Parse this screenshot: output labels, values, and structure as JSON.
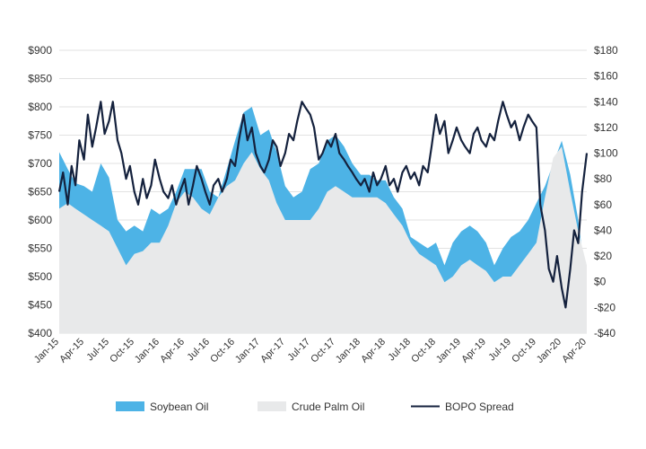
{
  "colors": {
    "soybean": "#4db3e6",
    "palm": "#e8e9ea",
    "spread": "#14213d",
    "grid": "#e2e2e2",
    "text": "#333333"
  },
  "chart_data": {
    "type": "area",
    "title": "",
    "xlabel": "",
    "ylabel": "",
    "y2label": "",
    "grid": true,
    "legend_position": "bottom-center",
    "x_tick_labels": [
      "Jan-15",
      "Apr-15",
      "Jul-15",
      "Oct-15",
      "Jan-16",
      "Apr-16",
      "Jul-16",
      "Oct-16",
      "Jan-17",
      "Apr-17",
      "Jul-17",
      "Oct-17",
      "Jan-18",
      "Apr-18",
      "Jul-18",
      "Oct-18",
      "Jan-19",
      "Apr-19",
      "Jul-19",
      "Oct-19",
      "Jan-20",
      "Apr-20"
    ],
    "xlim": [
      "2015-01-01",
      "2020-04-01"
    ],
    "ylim": [
      400,
      900
    ],
    "y_ticks": [
      400,
      450,
      500,
      550,
      600,
      650,
      700,
      750,
      800,
      850,
      900
    ],
    "y_tick_labels": [
      "$400",
      "$450",
      "$500",
      "$550",
      "$600",
      "$650",
      "$700",
      "$750",
      "$800",
      "$850",
      "$900"
    ],
    "y2lim": [
      -40,
      180
    ],
    "y2_ticks": [
      -40,
      -20,
      0,
      20,
      40,
      60,
      80,
      100,
      120,
      140,
      160,
      180
    ],
    "y2_tick_labels": [
      "-$40",
      "-$20",
      "$0",
      "$20",
      "$40",
      "$60",
      "$80",
      "$100",
      "$120",
      "$140",
      "$160",
      "$180"
    ],
    "series": [
      {
        "name": "Soybean Oil",
        "kind": "area",
        "axis": "left",
        "points": [
          [
            "2015-01-01",
            720
          ],
          [
            "2015-02-01",
            690
          ],
          [
            "2015-03-01",
            665
          ],
          [
            "2015-04-01",
            660
          ],
          [
            "2015-05-01",
            650
          ],
          [
            "2015-06-01",
            700
          ],
          [
            "2015-07-01",
            675
          ],
          [
            "2015-08-01",
            600
          ],
          [
            "2015-09-01",
            580
          ],
          [
            "2015-10-01",
            590
          ],
          [
            "2015-11-01",
            580
          ],
          [
            "2015-12-01",
            620
          ],
          [
            "2016-01-01",
            610
          ],
          [
            "2016-02-01",
            620
          ],
          [
            "2016-03-01",
            650
          ],
          [
            "2016-04-01",
            690
          ],
          [
            "2016-05-01",
            690
          ],
          [
            "2016-06-01",
            690
          ],
          [
            "2016-07-01",
            650
          ],
          [
            "2016-08-01",
            640
          ],
          [
            "2016-09-01",
            690
          ],
          [
            "2016-10-01",
            740
          ],
          [
            "2016-11-01",
            790
          ],
          [
            "2016-12-01",
            800
          ],
          [
            "2017-01-01",
            750
          ],
          [
            "2017-02-01",
            760
          ],
          [
            "2017-03-01",
            720
          ],
          [
            "2017-04-01",
            660
          ],
          [
            "2017-05-01",
            640
          ],
          [
            "2017-06-01",
            650
          ],
          [
            "2017-07-01",
            690
          ],
          [
            "2017-08-01",
            700
          ],
          [
            "2017-09-01",
            740
          ],
          [
            "2017-10-01",
            750
          ],
          [
            "2017-11-01",
            730
          ],
          [
            "2017-12-01",
            700
          ],
          [
            "2018-01-01",
            680
          ],
          [
            "2018-02-01",
            680
          ],
          [
            "2018-03-01",
            670
          ],
          [
            "2018-04-01",
            670
          ],
          [
            "2018-05-01",
            640
          ],
          [
            "2018-06-01",
            620
          ],
          [
            "2018-07-01",
            570
          ],
          [
            "2018-08-01",
            560
          ],
          [
            "2018-09-01",
            550
          ],
          [
            "2018-10-01",
            560
          ],
          [
            "2018-11-01",
            520
          ],
          [
            "2018-12-01",
            560
          ],
          [
            "2019-01-01",
            580
          ],
          [
            "2019-02-01",
            590
          ],
          [
            "2019-03-01",
            580
          ],
          [
            "2019-04-01",
            560
          ],
          [
            "2019-05-01",
            520
          ],
          [
            "2019-06-01",
            550
          ],
          [
            "2019-07-01",
            570
          ],
          [
            "2019-08-01",
            580
          ],
          [
            "2019-09-01",
            600
          ],
          [
            "2019-10-01",
            630
          ],
          [
            "2019-11-01",
            660
          ],
          [
            "2019-12-01",
            700
          ],
          [
            "2020-01-01",
            740
          ],
          [
            "2020-02-01",
            680
          ],
          [
            "2020-03-01",
            600
          ],
          [
            "2020-04-01",
            480
          ]
        ]
      },
      {
        "name": "Crude Palm Oil",
        "kind": "area",
        "axis": "left",
        "points": [
          [
            "2015-01-01",
            620
          ],
          [
            "2015-02-01",
            630
          ],
          [
            "2015-03-01",
            620
          ],
          [
            "2015-04-01",
            610
          ],
          [
            "2015-05-01",
            600
          ],
          [
            "2015-06-01",
            590
          ],
          [
            "2015-07-01",
            580
          ],
          [
            "2015-08-01",
            550
          ],
          [
            "2015-09-01",
            520
          ],
          [
            "2015-10-01",
            540
          ],
          [
            "2015-11-01",
            545
          ],
          [
            "2015-12-01",
            560
          ],
          [
            "2016-01-01",
            560
          ],
          [
            "2016-02-01",
            590
          ],
          [
            "2016-03-01",
            630
          ],
          [
            "2016-04-01",
            650
          ],
          [
            "2016-05-01",
            640
          ],
          [
            "2016-06-01",
            620
          ],
          [
            "2016-07-01",
            610
          ],
          [
            "2016-08-01",
            640
          ],
          [
            "2016-09-01",
            660
          ],
          [
            "2016-10-01",
            670
          ],
          [
            "2016-11-01",
            700
          ],
          [
            "2016-12-01",
            720
          ],
          [
            "2017-01-01",
            690
          ],
          [
            "2017-02-01",
            670
          ],
          [
            "2017-03-01",
            630
          ],
          [
            "2017-04-01",
            600
          ],
          [
            "2017-05-01",
            600
          ],
          [
            "2017-06-01",
            600
          ],
          [
            "2017-07-01",
            600
          ],
          [
            "2017-08-01",
            620
          ],
          [
            "2017-09-01",
            650
          ],
          [
            "2017-10-01",
            660
          ],
          [
            "2017-11-01",
            650
          ],
          [
            "2017-12-01",
            640
          ],
          [
            "2018-01-01",
            640
          ],
          [
            "2018-02-01",
            640
          ],
          [
            "2018-03-01",
            640
          ],
          [
            "2018-04-01",
            630
          ],
          [
            "2018-05-01",
            610
          ],
          [
            "2018-06-01",
            590
          ],
          [
            "2018-07-01",
            560
          ],
          [
            "2018-08-01",
            540
          ],
          [
            "2018-09-01",
            530
          ],
          [
            "2018-10-01",
            520
          ],
          [
            "2018-11-01",
            490
          ],
          [
            "2018-12-01",
            500
          ],
          [
            "2019-01-01",
            520
          ],
          [
            "2019-02-01",
            530
          ],
          [
            "2019-03-01",
            520
          ],
          [
            "2019-04-01",
            510
          ],
          [
            "2019-05-01",
            490
          ],
          [
            "2019-06-01",
            500
          ],
          [
            "2019-07-01",
            500
          ],
          [
            "2019-08-01",
            520
          ],
          [
            "2019-09-01",
            540
          ],
          [
            "2019-10-01",
            560
          ],
          [
            "2019-11-01",
            640
          ],
          [
            "2019-12-01",
            710
          ],
          [
            "2020-01-01",
            730
          ],
          [
            "2020-02-01",
            650
          ],
          [
            "2020-03-01",
            580
          ],
          [
            "2020-04-01",
            520
          ]
        ]
      },
      {
        "name": "BOPO Spread",
        "kind": "line",
        "axis": "right",
        "points": [
          [
            "2015-01-01",
            70
          ],
          [
            "2015-01-15",
            85
          ],
          [
            "2015-02-01",
            60
          ],
          [
            "2015-02-15",
            90
          ],
          [
            "2015-03-01",
            75
          ],
          [
            "2015-03-15",
            110
          ],
          [
            "2015-04-01",
            95
          ],
          [
            "2015-04-15",
            130
          ],
          [
            "2015-05-01",
            105
          ],
          [
            "2015-05-15",
            120
          ],
          [
            "2015-06-01",
            140
          ],
          [
            "2015-06-15",
            115
          ],
          [
            "2015-07-01",
            125
          ],
          [
            "2015-07-15",
            140
          ],
          [
            "2015-08-01",
            110
          ],
          [
            "2015-08-15",
            100
          ],
          [
            "2015-09-01",
            80
          ],
          [
            "2015-09-15",
            90
          ],
          [
            "2015-10-01",
            70
          ],
          [
            "2015-10-15",
            60
          ],
          [
            "2015-11-01",
            80
          ],
          [
            "2015-11-15",
            65
          ],
          [
            "2015-12-01",
            75
          ],
          [
            "2015-12-15",
            95
          ],
          [
            "2016-01-01",
            80
          ],
          [
            "2016-01-15",
            70
          ],
          [
            "2016-02-01",
            65
          ],
          [
            "2016-02-15",
            75
          ],
          [
            "2016-03-01",
            60
          ],
          [
            "2016-03-15",
            70
          ],
          [
            "2016-04-01",
            80
          ],
          [
            "2016-04-15",
            60
          ],
          [
            "2016-05-01",
            75
          ],
          [
            "2016-05-15",
            90
          ],
          [
            "2016-06-01",
            80
          ],
          [
            "2016-06-15",
            70
          ],
          [
            "2016-07-01",
            60
          ],
          [
            "2016-07-15",
            75
          ],
          [
            "2016-08-01",
            80
          ],
          [
            "2016-08-15",
            70
          ],
          [
            "2016-09-01",
            80
          ],
          [
            "2016-09-15",
            95
          ],
          [
            "2016-10-01",
            90
          ],
          [
            "2016-10-15",
            110
          ],
          [
            "2016-11-01",
            130
          ],
          [
            "2016-11-15",
            110
          ],
          [
            "2016-12-01",
            120
          ],
          [
            "2016-12-15",
            100
          ],
          [
            "2017-01-01",
            90
          ],
          [
            "2017-01-15",
            85
          ],
          [
            "2017-02-01",
            95
          ],
          [
            "2017-02-15",
            110
          ],
          [
            "2017-03-01",
            105
          ],
          [
            "2017-03-15",
            90
          ],
          [
            "2017-04-01",
            100
          ],
          [
            "2017-04-15",
            115
          ],
          [
            "2017-05-01",
            110
          ],
          [
            "2017-05-15",
            125
          ],
          [
            "2017-06-01",
            140
          ],
          [
            "2017-06-15",
            135
          ],
          [
            "2017-07-01",
            130
          ],
          [
            "2017-07-15",
            120
          ],
          [
            "2017-08-01",
            95
          ],
          [
            "2017-08-15",
            100
          ],
          [
            "2017-09-01",
            110
          ],
          [
            "2017-09-15",
            105
          ],
          [
            "2017-10-01",
            115
          ],
          [
            "2017-10-15",
            100
          ],
          [
            "2017-11-01",
            95
          ],
          [
            "2017-11-15",
            90
          ],
          [
            "2017-12-01",
            85
          ],
          [
            "2017-12-15",
            80
          ],
          [
            "2018-01-01",
            75
          ],
          [
            "2018-01-15",
            80
          ],
          [
            "2018-02-01",
            70
          ],
          [
            "2018-02-15",
            85
          ],
          [
            "2018-03-01",
            75
          ],
          [
            "2018-03-15",
            80
          ],
          [
            "2018-04-01",
            90
          ],
          [
            "2018-04-15",
            75
          ],
          [
            "2018-05-01",
            80
          ],
          [
            "2018-05-15",
            70
          ],
          [
            "2018-06-01",
            85
          ],
          [
            "2018-06-15",
            90
          ],
          [
            "2018-07-01",
            80
          ],
          [
            "2018-07-15",
            85
          ],
          [
            "2018-08-01",
            75
          ],
          [
            "2018-08-15",
            90
          ],
          [
            "2018-09-01",
            85
          ],
          [
            "2018-09-15",
            105
          ],
          [
            "2018-10-01",
            130
          ],
          [
            "2018-10-15",
            115
          ],
          [
            "2018-11-01",
            125
          ],
          [
            "2018-11-15",
            100
          ],
          [
            "2018-12-01",
            110
          ],
          [
            "2018-12-15",
            120
          ],
          [
            "2019-01-01",
            110
          ],
          [
            "2019-01-15",
            105
          ],
          [
            "2019-02-01",
            100
          ],
          [
            "2019-02-15",
            115
          ],
          [
            "2019-03-01",
            120
          ],
          [
            "2019-03-15",
            110
          ],
          [
            "2019-04-01",
            105
          ],
          [
            "2019-04-15",
            115
          ],
          [
            "2019-05-01",
            110
          ],
          [
            "2019-05-15",
            125
          ],
          [
            "2019-06-01",
            140
          ],
          [
            "2019-06-15",
            130
          ],
          [
            "2019-07-01",
            120
          ],
          [
            "2019-07-15",
            125
          ],
          [
            "2019-08-01",
            110
          ],
          [
            "2019-08-15",
            120
          ],
          [
            "2019-09-01",
            130
          ],
          [
            "2019-09-15",
            125
          ],
          [
            "2019-10-01",
            120
          ],
          [
            "2019-10-15",
            60
          ],
          [
            "2019-11-01",
            40
          ],
          [
            "2019-11-15",
            10
          ],
          [
            "2019-12-01",
            0
          ],
          [
            "2019-12-15",
            20
          ],
          [
            "2020-01-01",
            -5
          ],
          [
            "2020-01-15",
            -20
          ],
          [
            "2020-02-01",
            10
          ],
          [
            "2020-02-15",
            40
          ],
          [
            "2020-03-01",
            30
          ],
          [
            "2020-03-15",
            70
          ],
          [
            "2020-04-01",
            100
          ]
        ]
      }
    ]
  }
}
